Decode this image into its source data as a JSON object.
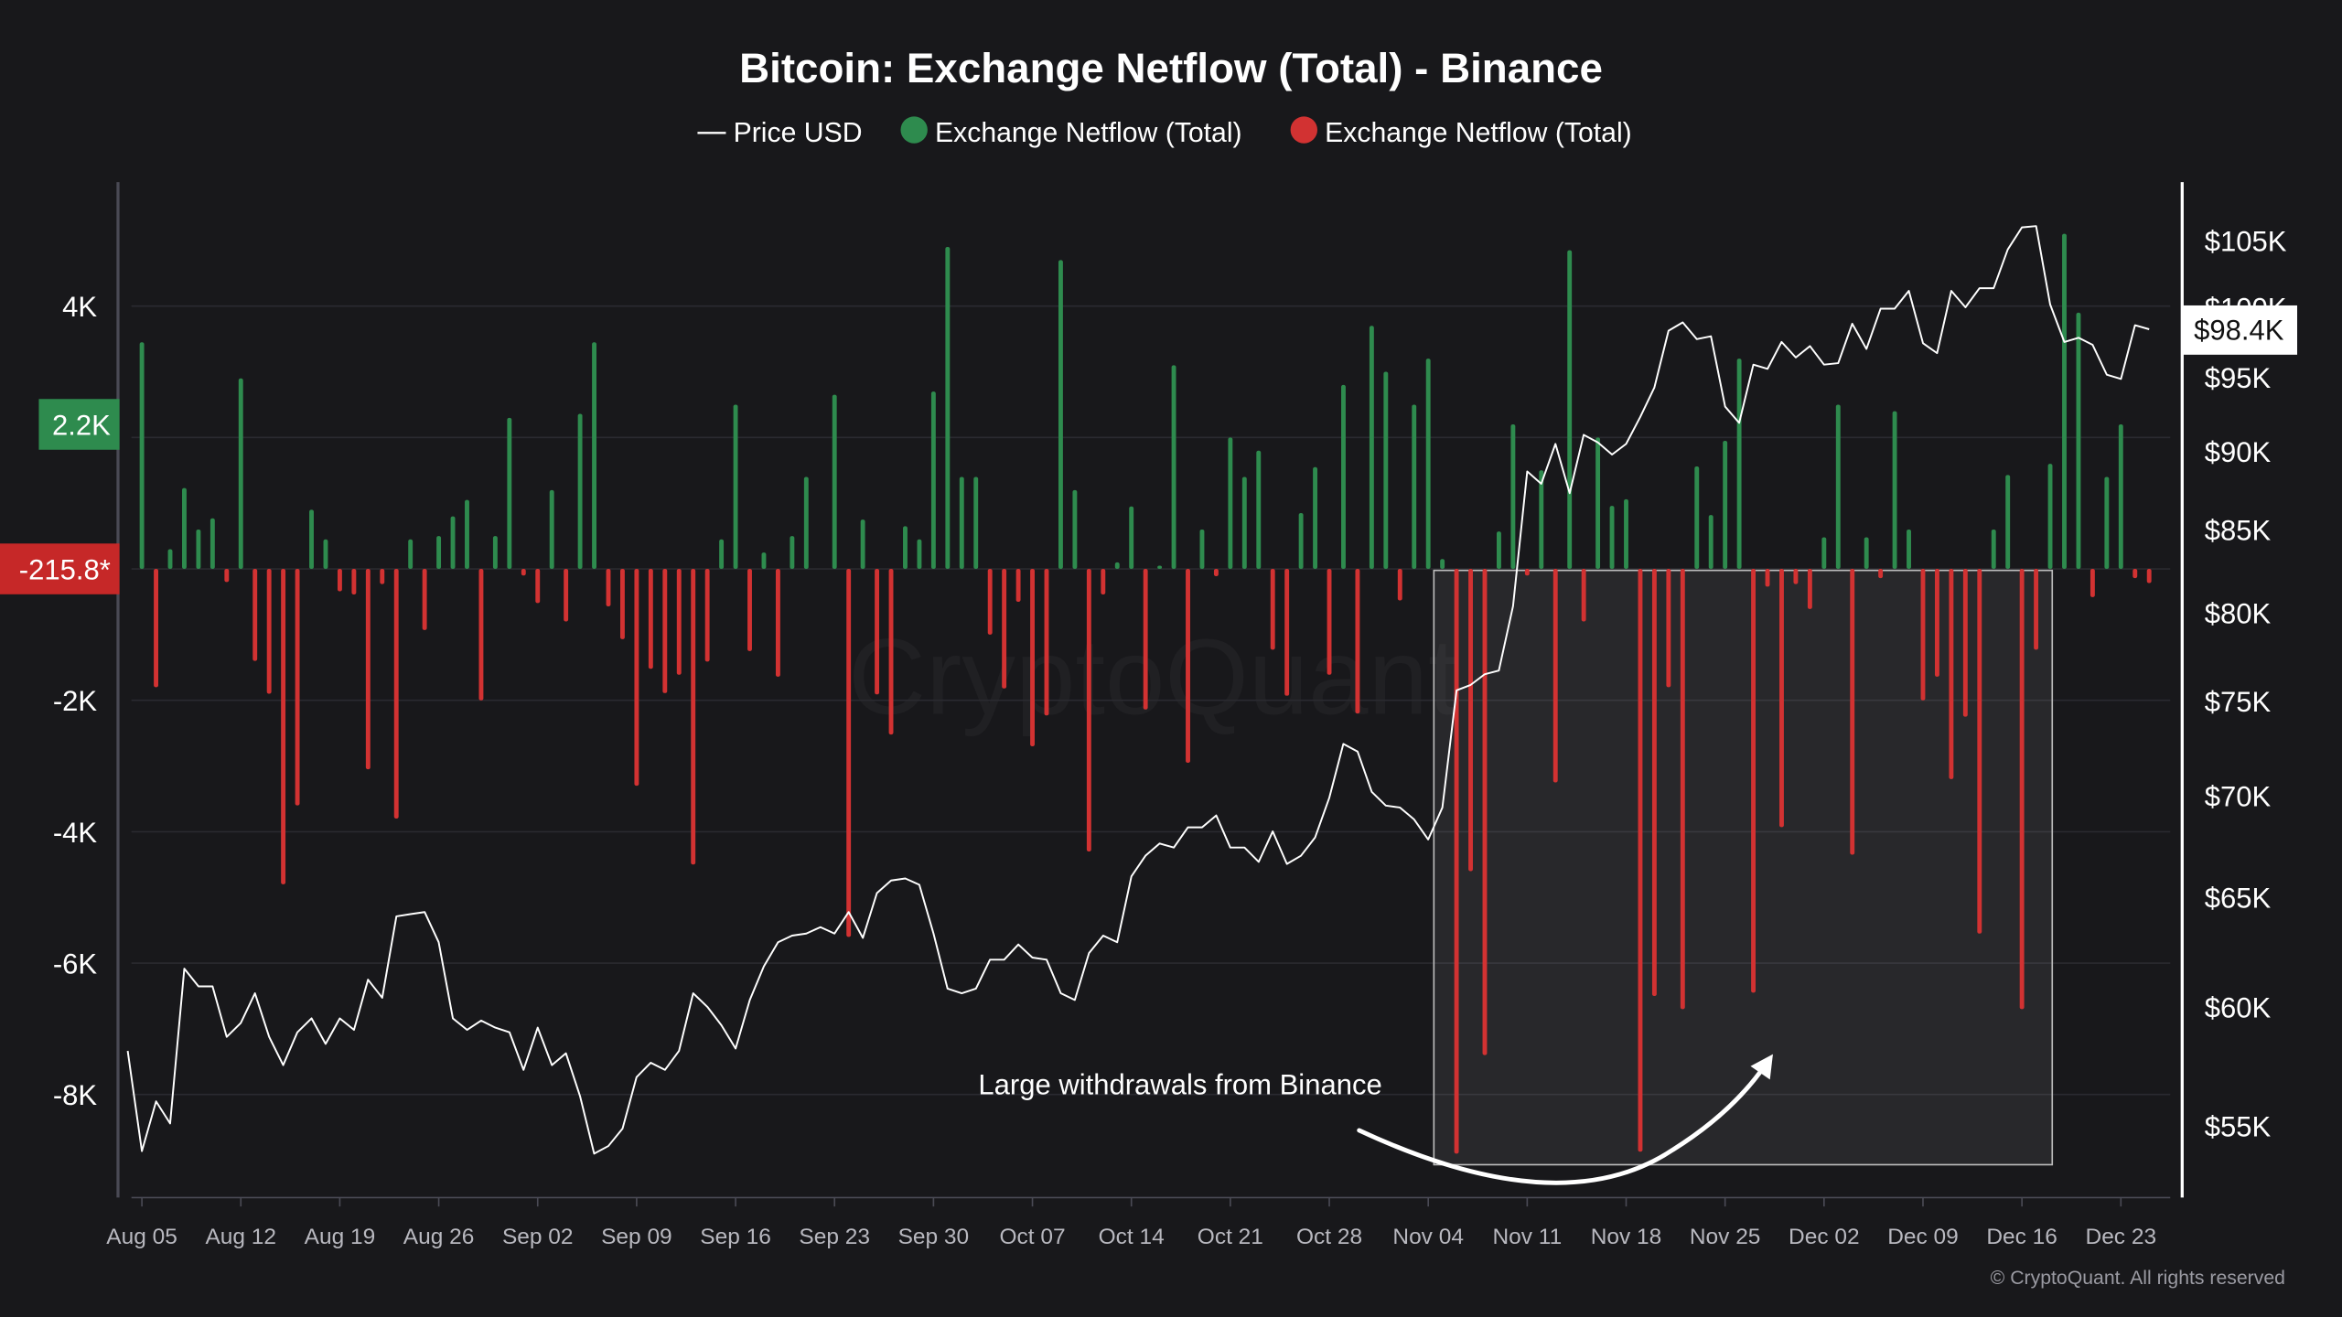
{
  "chart_data": {
    "type": "bar+line",
    "title": "Bitcoin: Exchange Netflow (Total) - Binance",
    "legend": [
      {
        "label": "Price USD",
        "marker": "line",
        "color": "#ffffff"
      },
      {
        "label": "Exchange Netflow (Total)",
        "marker": "dot",
        "color": "#2e8b4e"
      },
      {
        "label": "Exchange Netflow (Total)",
        "marker": "dot",
        "color": "#d23232"
      }
    ],
    "legend_placement": "top-center",
    "colors": {
      "background": "#18181b",
      "positive": "#2e8b4e",
      "negative": "#d23232",
      "price": "#ffffff",
      "grid": "#2a2a30"
    },
    "grid": true,
    "x_ticks": [
      "Aug 05",
      "Aug 12",
      "Aug 19",
      "Aug 26",
      "Sep 02",
      "Sep 09",
      "Sep 16",
      "Sep 23",
      "Sep 30",
      "Oct 07",
      "Oct 14",
      "Oct 21",
      "Oct 28",
      "Nov 04",
      "Nov 11",
      "Nov 18",
      "Nov 25",
      "Dec 02",
      "Dec 09",
      "Dec 16",
      "Dec 23"
    ],
    "left_axis": {
      "ticks": [
        "4K",
        "2K",
        "0",
        "-2K",
        "-4K",
        "-6K",
        "-8K"
      ],
      "tick_values": [
        4000,
        2000,
        0,
        -2000,
        -4000,
        -6000,
        -8000
      ],
      "scale": "linear",
      "range": [
        -9500,
        5900
      ]
    },
    "right_axis": {
      "ticks": [
        "$105K",
        "$100K",
        "$95K",
        "$90K",
        "$85K",
        "$80K",
        "$75K",
        "$70K",
        "$65K",
        "$60K",
        "$55K"
      ],
      "tick_values": [
        105000,
        100000,
        95000,
        90000,
        85000,
        80000,
        75000,
        70000,
        65000,
        60000,
        55000
      ],
      "scale": "log"
    },
    "badges": {
      "netflow_positive": "2.2K",
      "netflow_positive_value": 2200,
      "netflow_latest": "-215.8*",
      "netflow_latest_value": -215.8,
      "price_latest": "$98.4K",
      "price_latest_value": 98400
    },
    "annotation": {
      "text": "Large withdrawals from Binance",
      "highlight_range": [
        "Nov 05",
        "Dec 17"
      ]
    },
    "watermark": "CryptoQuant",
    "copyright": "© CryptoQuant. All rights reserved",
    "netflow": [
      [
        "Aug 05",
        3450
      ],
      [
        "Aug 06",
        -1800
      ],
      [
        "Aug 07",
        300
      ],
      [
        "Aug 08",
        1230
      ],
      [
        "Aug 09",
        600
      ],
      [
        "Aug 10",
        770
      ],
      [
        "Aug 11",
        -200
      ],
      [
        "Aug 12",
        2900
      ],
      [
        "Aug 13",
        -1400
      ],
      [
        "Aug 14",
        -1900
      ],
      [
        "Aug 15",
        -4800
      ],
      [
        "Aug 16",
        -3600
      ],
      [
        "Aug 17",
        900
      ],
      [
        "Aug 18",
        450
      ],
      [
        "Aug 19",
        -340
      ],
      [
        "Aug 20",
        -390
      ],
      [
        "Aug 21",
        -3050
      ],
      [
        "Aug 22",
        -230
      ],
      [
        "Aug 23",
        -3800
      ],
      [
        "Aug 24",
        450
      ],
      [
        "Aug 25",
        -930
      ],
      [
        "Aug 26",
        500
      ],
      [
        "Aug 27",
        800
      ],
      [
        "Aug 28",
        1050
      ],
      [
        "Aug 29",
        -2000
      ],
      [
        "Aug 30",
        500
      ],
      [
        "Aug 31",
        2300
      ],
      [
        "Sep 01",
        -100
      ],
      [
        "Sep 02",
        -520
      ],
      [
        "Sep 03",
        1200
      ],
      [
        "Sep 04",
        -800
      ],
      [
        "Sep 05",
        2360
      ],
      [
        "Sep 06",
        3450
      ],
      [
        "Sep 07",
        -570
      ],
      [
        "Sep 08",
        -1070
      ],
      [
        "Sep 09",
        -3300
      ],
      [
        "Sep 10",
        -1520
      ],
      [
        "Sep 11",
        -1890
      ],
      [
        "Sep 12",
        -1610
      ],
      [
        "Sep 13",
        -4500
      ],
      [
        "Sep 14",
        -1410
      ],
      [
        "Sep 15",
        450
      ],
      [
        "Sep 16",
        2500
      ],
      [
        "Sep 17",
        -1250
      ],
      [
        "Sep 18",
        250
      ],
      [
        "Sep 19",
        -1640
      ],
      [
        "Sep 20",
        500
      ],
      [
        "Sep 21",
        1400
      ],
      [
        "Sep 23",
        2650
      ],
      [
        "Sep 24",
        -5600
      ],
      [
        "Sep 25",
        750
      ],
      [
        "Sep 26",
        -1910
      ],
      [
        "Sep 27",
        -2520
      ],
      [
        "Sep 28",
        650
      ],
      [
        "Sep 29",
        450
      ],
      [
        "Sep 30",
        2700
      ],
      [
        "Oct 01",
        4900
      ],
      [
        "Oct 02",
        1400
      ],
      [
        "Oct 03",
        1400
      ],
      [
        "Oct 04",
        -1000
      ],
      [
        "Oct 05",
        -1820
      ],
      [
        "Oct 06",
        -500
      ],
      [
        "Oct 07",
        -2700
      ],
      [
        "Oct 08",
        -2230
      ],
      [
        "Oct 09",
        4700
      ],
      [
        "Oct 10",
        1200
      ],
      [
        "Oct 11",
        -4300
      ],
      [
        "Oct 12",
        -390
      ],
      [
        "Oct 13",
        100
      ],
      [
        "Oct 14",
        950
      ],
      [
        "Oct 15",
        -2140
      ],
      [
        "Oct 16",
        50
      ],
      [
        "Oct 17",
        3100
      ],
      [
        "Oct 18",
        -2950
      ],
      [
        "Oct 19",
        600
      ],
      [
        "Oct 20",
        -110
      ],
      [
        "Oct 21",
        2000
      ],
      [
        "Oct 22",
        1400
      ],
      [
        "Oct 23",
        1800
      ],
      [
        "Oct 24",
        -1230
      ],
      [
        "Oct 25",
        -1930
      ],
      [
        "Oct 26",
        850
      ],
      [
        "Oct 27",
        1550
      ],
      [
        "Oct 28",
        -1610
      ],
      [
        "Oct 29",
        2800
      ],
      [
        "Oct 30",
        -2200
      ],
      [
        "Oct 31",
        3700
      ],
      [
        "Nov 01",
        3000
      ],
      [
        "Nov 02",
        -480
      ],
      [
        "Nov 03",
        2500
      ],
      [
        "Nov 04",
        3200
      ],
      [
        "Nov 05",
        150
      ],
      [
        "Nov 06",
        -8900
      ],
      [
        "Nov 07",
        -4600
      ],
      [
        "Nov 08",
        -7400
      ],
      [
        "Nov 09",
        570
      ],
      [
        "Nov 10",
        2200
      ],
      [
        "Nov 11",
        -100
      ],
      [
        "Nov 12",
        1500
      ],
      [
        "Nov 13",
        -3250
      ],
      [
        "Nov 14",
        4850
      ],
      [
        "Nov 15",
        -800
      ],
      [
        "Nov 16",
        2000
      ],
      [
        "Nov 17",
        960
      ],
      [
        "Nov 18",
        1060
      ],
      [
        "Nov 19",
        -8870
      ],
      [
        "Nov 20",
        -6500
      ],
      [
        "Nov 21",
        -1800
      ],
      [
        "Nov 22",
        -6700
      ],
      [
        "Nov 23",
        1560
      ],
      [
        "Nov 24",
        820
      ],
      [
        "Nov 25",
        1950
      ],
      [
        "Nov 26",
        3200
      ],
      [
        "Nov 27",
        -6450
      ],
      [
        "Nov 28",
        -270
      ],
      [
        "Nov 29",
        -3930
      ],
      [
        "Nov 30",
        -230
      ],
      [
        "Dec 01",
        -610
      ],
      [
        "Dec 02",
        480
      ],
      [
        "Dec 03",
        2500
      ],
      [
        "Dec 04",
        -4350
      ],
      [
        "Dec 05",
        480
      ],
      [
        "Dec 06",
        -140
      ],
      [
        "Dec 07",
        2400
      ],
      [
        "Dec 08",
        600
      ],
      [
        "Dec 09",
        -2000
      ],
      [
        "Dec 10",
        -1640
      ],
      [
        "Dec 11",
        -3200
      ],
      [
        "Dec 12",
        -2250
      ],
      [
        "Dec 13",
        -5550
      ],
      [
        "Dec 14",
        600
      ],
      [
        "Dec 15",
        1430
      ],
      [
        "Dec 16",
        -6700
      ],
      [
        "Dec 17",
        -1230
      ],
      [
        "Dec 18",
        1600
      ],
      [
        "Dec 19",
        5100
      ],
      [
        "Dec 20",
        3900
      ],
      [
        "Dec 21",
        -430
      ],
      [
        "Dec 22",
        1400
      ],
      [
        "Dec 23",
        2200
      ],
      [
        "Dec 24",
        -140
      ],
      [
        "Dec 25",
        -215.8
      ]
    ],
    "price_usd": [
      [
        "Aug 04",
        58100
      ],
      [
        "Aug 05",
        54000
      ],
      [
        "Aug 06",
        56000
      ],
      [
        "Aug 07",
        55100
      ],
      [
        "Aug 08",
        61700
      ],
      [
        "Aug 09",
        60900
      ],
      [
        "Aug 10",
        60900
      ],
      [
        "Aug 11",
        58700
      ],
      [
        "Aug 12",
        59300
      ],
      [
        "Aug 13",
        60600
      ],
      [
        "Aug 14",
        58700
      ],
      [
        "Aug 15",
        57500
      ],
      [
        "Aug 16",
        58900
      ],
      [
        "Aug 17",
        59500
      ],
      [
        "Aug 18",
        58400
      ],
      [
        "Aug 19",
        59500
      ],
      [
        "Aug 20",
        59000
      ],
      [
        "Aug 21",
        61200
      ],
      [
        "Aug 22",
        60400
      ],
      [
        "Aug 23",
        64100
      ],
      [
        "Aug 24",
        64200
      ],
      [
        "Aug 25",
        64300
      ],
      [
        "Aug 26",
        62900
      ],
      [
        "Aug 27",
        59500
      ],
      [
        "Aug 28",
        59000
      ],
      [
        "Aug 29",
        59400
      ],
      [
        "Aug 30",
        59100
      ],
      [
        "Aug 31",
        58900
      ],
      [
        "Sep 01",
        57300
      ],
      [
        "Sep 02",
        59100
      ],
      [
        "Sep 03",
        57500
      ],
      [
        "Sep 04",
        58000
      ],
      [
        "Sep 05",
        56200
      ],
      [
        "Sep 06",
        53900
      ],
      [
        "Sep 07",
        54200
      ],
      [
        "Sep 08",
        54900
      ],
      [
        "Sep 09",
        57000
      ],
      [
        "Sep 10",
        57600
      ],
      [
        "Sep 11",
        57300
      ],
      [
        "Sep 12",
        58100
      ],
      [
        "Sep 13",
        60600
      ],
      [
        "Sep 14",
        60000
      ],
      [
        "Sep 15",
        59200
      ],
      [
        "Sep 16",
        58200
      ],
      [
        "Sep 17",
        60300
      ],
      [
        "Sep 18",
        61800
      ],
      [
        "Sep 19",
        62900
      ],
      [
        "Sep 20",
        63200
      ],
      [
        "Sep 21",
        63300
      ],
      [
        "Sep 22",
        63600
      ],
      [
        "Sep 23",
        63300
      ],
      [
        "Sep 24",
        64300
      ],
      [
        "Sep 25",
        63100
      ],
      [
        "Sep 26",
        65200
      ],
      [
        "Sep 27",
        65800
      ],
      [
        "Sep 28",
        65900
      ],
      [
        "Sep 29",
        65600
      ],
      [
        "Sep 30",
        63300
      ],
      [
        "Oct 01",
        60800
      ],
      [
        "Oct 02",
        60600
      ],
      [
        "Oct 03",
        60800
      ],
      [
        "Oct 04",
        62100
      ],
      [
        "Oct 05",
        62100
      ],
      [
        "Oct 06",
        62800
      ],
      [
        "Oct 07",
        62200
      ],
      [
        "Oct 08",
        62100
      ],
      [
        "Oct 09",
        60600
      ],
      [
        "Oct 10",
        60300
      ],
      [
        "Oct 11",
        62400
      ],
      [
        "Oct 12",
        63200
      ],
      [
        "Oct 13",
        62900
      ],
      [
        "Oct 14",
        66000
      ],
      [
        "Oct 15",
        67000
      ],
      [
        "Oct 16",
        67600
      ],
      [
        "Oct 17",
        67400
      ],
      [
        "Oct 18",
        68400
      ],
      [
        "Oct 19",
        68400
      ],
      [
        "Oct 20",
        69000
      ],
      [
        "Oct 21",
        67400
      ],
      [
        "Oct 22",
        67400
      ],
      [
        "Oct 23",
        66700
      ],
      [
        "Oct 24",
        68200
      ],
      [
        "Oct 25",
        66600
      ],
      [
        "Oct 26",
        67000
      ],
      [
        "Oct 27",
        67900
      ],
      [
        "Oct 28",
        69900
      ],
      [
        "Oct 29",
        72700
      ],
      [
        "Oct 30",
        72300
      ],
      [
        "Oct 31",
        70200
      ],
      [
        "Nov 01",
        69500
      ],
      [
        "Nov 02",
        69400
      ],
      [
        "Nov 03",
        68800
      ],
      [
        "Nov 04",
        67800
      ],
      [
        "Nov 05",
        69400
      ],
      [
        "Nov 06",
        75600
      ],
      [
        "Nov 07",
        75900
      ],
      [
        "Nov 08",
        76500
      ],
      [
        "Nov 09",
        76700
      ],
      [
        "Nov 10",
        80400
      ],
      [
        "Nov 11",
        88700
      ],
      [
        "Nov 12",
        87900
      ],
      [
        "Nov 13",
        90500
      ],
      [
        "Nov 14",
        87300
      ],
      [
        "Nov 15",
        91100
      ],
      [
        "Nov 16",
        90600
      ],
      [
        "Nov 17",
        89800
      ],
      [
        "Nov 18",
        90500
      ],
      [
        "Nov 19",
        92300
      ],
      [
        "Nov 20",
        94300
      ],
      [
        "Nov 21",
        98300
      ],
      [
        "Nov 22",
        98900
      ],
      [
        "Nov 23",
        97700
      ],
      [
        "Nov 24",
        97900
      ],
      [
        "Nov 25",
        93000
      ],
      [
        "Nov 26",
        91900
      ],
      [
        "Nov 27",
        95900
      ],
      [
        "Nov 28",
        95600
      ],
      [
        "Nov 29",
        97500
      ],
      [
        "Nov 30",
        96400
      ],
      [
        "Dec 01",
        97200
      ],
      [
        "Dec 02",
        95900
      ],
      [
        "Dec 03",
        96000
      ],
      [
        "Dec 04",
        98800
      ],
      [
        "Dec 05",
        97000
      ],
      [
        "Dec 06",
        99900
      ],
      [
        "Dec 07",
        99900
      ],
      [
        "Dec 08",
        101200
      ],
      [
        "Dec 09",
        97400
      ],
      [
        "Dec 10",
        96700
      ],
      [
        "Dec 11",
        101200
      ],
      [
        "Dec 12",
        100000
      ],
      [
        "Dec 13",
        101400
      ],
      [
        "Dec 14",
        101400
      ],
      [
        "Dec 15",
        104300
      ],
      [
        "Dec 16",
        106000
      ],
      [
        "Dec 17",
        106100
      ],
      [
        "Dec 18",
        100200
      ],
      [
        "Dec 19",
        97500
      ],
      [
        "Dec 20",
        97800
      ],
      [
        "Dec 21",
        97300
      ],
      [
        "Dec 22",
        95200
      ],
      [
        "Dec 23",
        94900
      ],
      [
        "Dec 24",
        98700
      ],
      [
        "Dec 25",
        98400
      ]
    ]
  }
}
